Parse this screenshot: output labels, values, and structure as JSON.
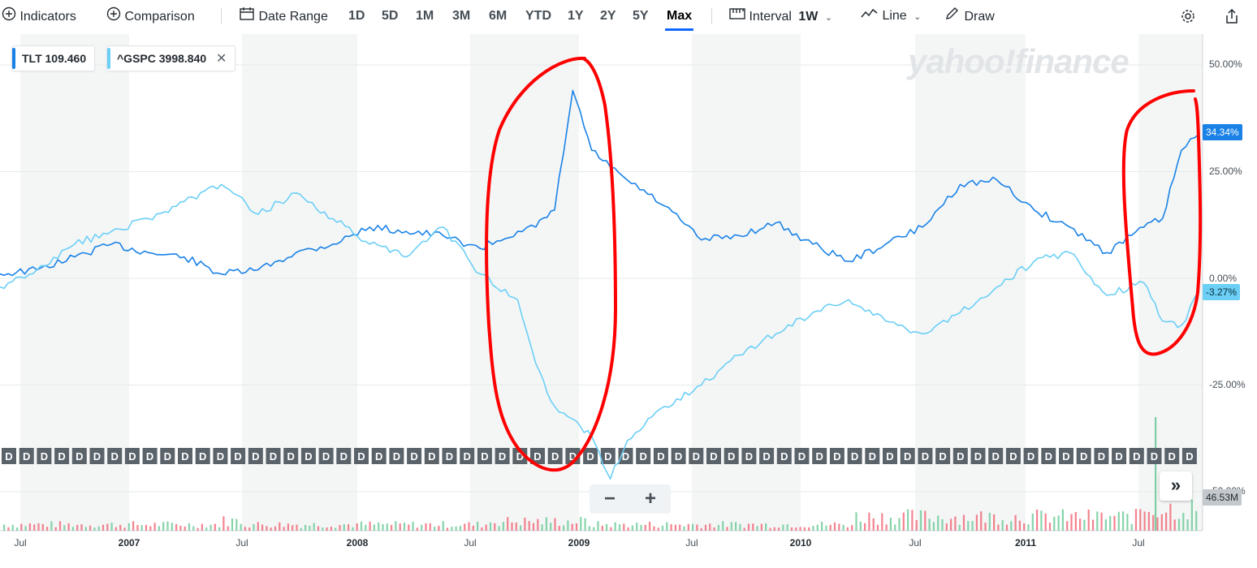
{
  "toolbar": {
    "indicators": "Indicators",
    "comparison": "Comparison",
    "date_range": "Date Range",
    "ranges": [
      "1D",
      "5D",
      "1M",
      "3M",
      "6M",
      "YTD",
      "1Y",
      "2Y",
      "5Y",
      "Max"
    ],
    "active_range": "Max",
    "interval_label": "Interval",
    "interval_value": "1W",
    "chart_type": "Line",
    "draw": "Draw"
  },
  "legend": {
    "series1_symbol": "TLT",
    "series1_value": "109.460",
    "series2_symbol": "^GSPC",
    "series2_value": "3998.840"
  },
  "watermark": "yahoo!finance",
  "y_axis_labels": [
    "50.00%",
    "25.00%",
    "0.00%",
    "-25.00%",
    "-50.00%"
  ],
  "last_value_tags": {
    "tlt": "34.34%",
    "gspc": "-3.27%",
    "volume": "46.53M"
  },
  "x_axis_labels": [
    "Jul",
    "2007",
    "Jul",
    "2008",
    "Jul",
    "2009",
    "Jul",
    "2010",
    "Jul",
    "2011",
    "Jul"
  ],
  "dividend_marker": "D",
  "colors": {
    "tlt": "#1a82e6",
    "gspc": "#6bcff6",
    "annotation": "#ff0000",
    "vol_up": "#5fc68f",
    "vol_down": "#f05a6a"
  },
  "chart_data": {
    "type": "line",
    "title": "",
    "y_unit": "percent change",
    "ylim": [
      -50,
      50
    ],
    "x_range": [
      "2006-05",
      "2011-10"
    ],
    "grid": true,
    "x": [
      "2006-05",
      "2006-07",
      "2006-09",
      "2006-11",
      "2007-01",
      "2007-03",
      "2007-05",
      "2007-07",
      "2007-09",
      "2007-11",
      "2008-01",
      "2008-03",
      "2008-05",
      "2008-07",
      "2008-09",
      "2008-10",
      "2008-11",
      "2008-12",
      "2009-01",
      "2009-02",
      "2009-03",
      "2009-05",
      "2009-07",
      "2009-09",
      "2009-11",
      "2010-01",
      "2010-03",
      "2010-05",
      "2010-07",
      "2010-09",
      "2010-11",
      "2011-01",
      "2011-03",
      "2011-05",
      "2011-07",
      "2011-08",
      "2011-09",
      "2011-10"
    ],
    "series": [
      {
        "name": "TLT",
        "values": [
          1,
          2,
          5,
          8,
          6,
          5,
          1,
          2,
          6,
          8,
          12,
          11,
          10,
          7,
          11,
          12,
          16,
          44,
          30,
          26,
          23,
          17,
          9,
          10,
          13,
          8,
          4,
          8,
          12,
          22,
          23,
          16,
          12,
          6,
          12,
          14,
          30,
          34
        ]
      },
      {
        "name": "^GSPC",
        "values": [
          -2,
          2,
          8,
          11,
          14,
          18,
          22,
          15,
          20,
          14,
          8,
          5,
          12,
          1,
          -5,
          -20,
          -30,
          -33,
          -37,
          -47,
          -38,
          -30,
          -25,
          -18,
          -13,
          -8,
          -5,
          -10,
          -13,
          -8,
          -2,
          4,
          6,
          -4,
          -1,
          -10,
          -11,
          -3
        ]
      }
    ],
    "annotations": [
      {
        "type": "hand-drawn ellipse",
        "x_range": [
          "2008-09",
          "2009-02"
        ]
      },
      {
        "type": "hand-drawn ellipse",
        "x_range": [
          "2011-07",
          "2011-10"
        ]
      }
    ]
  }
}
